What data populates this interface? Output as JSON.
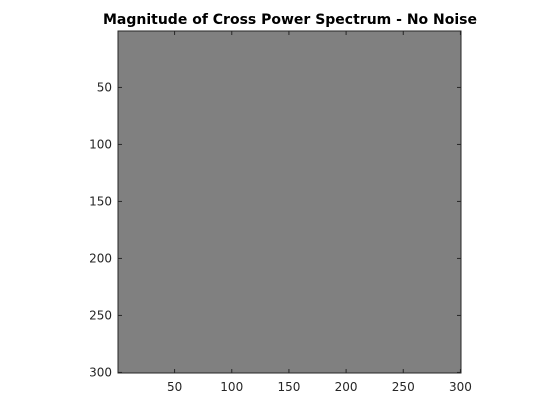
{
  "chart_data": {
    "type": "heatmap",
    "title": "Magnitude of Cross Power Spectrum - No Noise",
    "xlabel": "",
    "ylabel": "",
    "image_size": [
      300,
      300
    ],
    "xlim": [
      0.5,
      300.5
    ],
    "ylim": [
      0.5,
      300.5
    ],
    "y_direction": "reverse",
    "xticks": [
      50,
      100,
      150,
      200,
      250,
      300
    ],
    "yticks": [
      50,
      100,
      150,
      200,
      250,
      300
    ],
    "xtick_labels": [
      "50",
      "100",
      "150",
      "200",
      "250",
      "300"
    ],
    "ytick_labels": [
      "50",
      "100",
      "150",
      "200",
      "250",
      "300"
    ],
    "fill_color": "#808080",
    "grid": false,
    "colorbar": false,
    "legend": "none"
  }
}
